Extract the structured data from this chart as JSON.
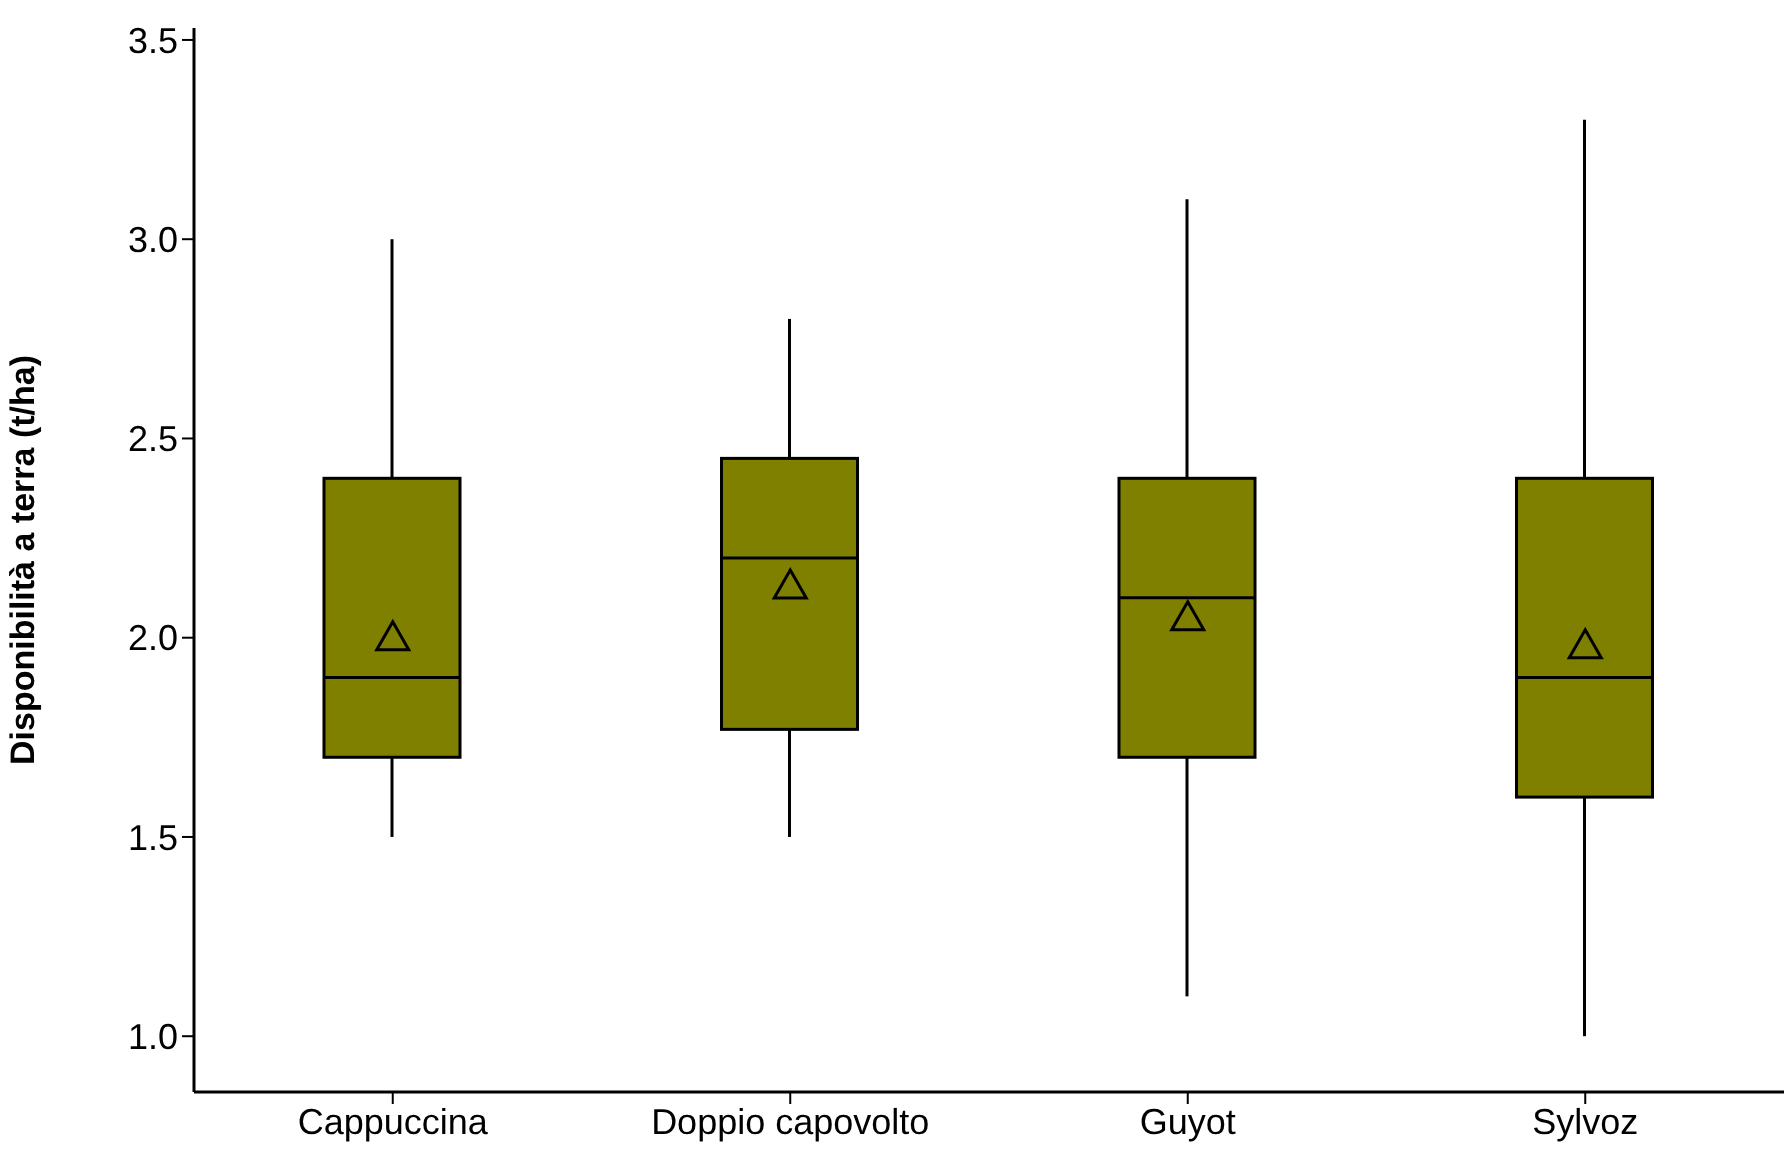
{
  "chart_data": {
    "type": "box",
    "ylabel": "Disponibilità a terra (t/ha)",
    "categories": [
      "Cappuccina",
      "Doppio capovolto",
      "Guyot",
      "Sylvoz"
    ],
    "color": "#808000",
    "boxes": [
      {
        "low": 1.5,
        "q1": 1.7,
        "median": 1.9,
        "q3": 2.4,
        "high": 3.0,
        "mean": 2.0
      },
      {
        "low": 1.5,
        "q1": 1.77,
        "median": 2.2,
        "q3": 2.45,
        "high": 2.8,
        "mean": 2.13
      },
      {
        "low": 1.1,
        "q1": 1.7,
        "median": 2.1,
        "q3": 2.4,
        "high": 3.1,
        "mean": 2.05
      },
      {
        "low": 1.0,
        "q1": 1.6,
        "median": 1.9,
        "q3": 2.4,
        "high": 3.3,
        "mean": 1.98
      }
    ],
    "ylim": [
      0.86,
      3.53
    ],
    "yticks": [
      {
        "value": 1,
        "label": "1.0"
      },
      {
        "value": 1.5,
        "label": "1.5"
      },
      {
        "value": 2,
        "label": "2.0"
      },
      {
        "value": 2.5,
        "label": "2.5"
      },
      {
        "value": 3,
        "label": "3.0"
      },
      {
        "value": 3.5,
        "label": "3.5"
      }
    ]
  }
}
